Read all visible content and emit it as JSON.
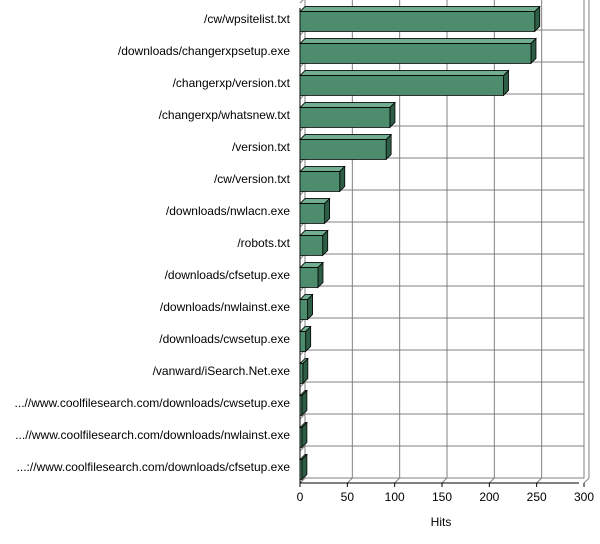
{
  "chart_data": {
    "type": "bar",
    "orientation": "horizontal",
    "categories": [
      "/cw/wpsitelist.txt",
      "/downloads/changerxpsetup.exe",
      "/changerxp/version.txt",
      "/changerxp/whatsnew.txt",
      "/version.txt",
      "/cw/version.txt",
      "/downloads/nwlacn.exe",
      "/robots.txt",
      "/downloads/cfsetup.exe",
      "/downloads/nwlainst.exe",
      "/downloads/cwsetup.exe",
      "/vanward/iSearch.Net.exe",
      "...//www.coolfilesearch.com/downloads/cwsetup.exe",
      "...//www.coolfilesearch.com/downloads/nwlainst.exe",
      "...://www.coolfilesearch.com/downloads/cfsetup.exe"
    ],
    "values": [
      248,
      244,
      215,
      95,
      91,
      42,
      26,
      24,
      19,
      8,
      6,
      3,
      2,
      2,
      2
    ],
    "xlabel": "Hits",
    "ylabel": "",
    "xlim": [
      0,
      300
    ],
    "xticks": [
      "0",
      "50",
      "100",
      "150",
      "200",
      "250",
      "300"
    ],
    "grid": true,
    "bar_color": "#4e8c6e",
    "bar_top_color": "#6fae8f",
    "bar_side_color": "#2f5e47"
  }
}
